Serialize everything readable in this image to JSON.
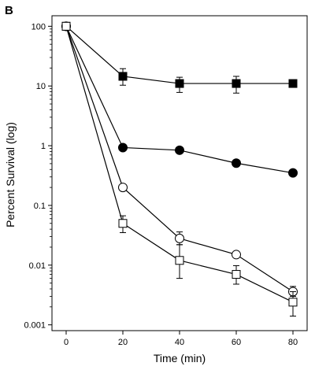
{
  "chart_data": {
    "type": "line",
    "panel_label": "B",
    "title": "",
    "xlabel": "Time (min)",
    "ylabel": "Percent Survival (log)",
    "y_scale": "log",
    "xlim": [
      -5,
      85
    ],
    "ylim": [
      0.0008,
      150
    ],
    "x_ticks": [
      0,
      20,
      40,
      60,
      80
    ],
    "x_tick_labels": [
      "0",
      "20",
      "40",
      "60",
      "80"
    ],
    "y_ticks": [
      100,
      10,
      1,
      0.1,
      0.01,
      0.001
    ],
    "y_tick_labels": [
      "100",
      "10",
      "1",
      "0.1",
      "0.01",
      "0.001"
    ],
    "grid": false,
    "legend": "none",
    "series": [
      {
        "marker": "filled-square",
        "x": [
          0,
          20,
          40,
          60,
          80
        ],
        "y": [
          100,
          14.5,
          11,
          11,
          11
        ],
        "err_low": [
          null,
          10.3,
          7.8,
          7.6,
          null
        ],
        "err_high": [
          null,
          19.5,
          14,
          14.5,
          null
        ]
      },
      {
        "marker": "filled-circle",
        "x": [
          0,
          20,
          40,
          60,
          80
        ],
        "y": [
          100,
          0.93,
          0.84,
          0.51,
          0.35
        ],
        "err_low": [
          null,
          null,
          null,
          null,
          null
        ],
        "err_high": [
          null,
          null,
          null,
          null,
          null
        ]
      },
      {
        "marker": "open-circle",
        "x": [
          0,
          20,
          40,
          60,
          80
        ],
        "y": [
          100,
          0.2,
          0.028,
          0.015,
          0.0036
        ],
        "err_low": [
          null,
          null,
          0.022,
          null,
          0.003
        ],
        "err_high": [
          null,
          null,
          0.036,
          null,
          0.0044
        ]
      },
      {
        "marker": "open-square",
        "x": [
          0,
          20,
          40,
          60,
          80
        ],
        "y": [
          100,
          0.05,
          0.012,
          0.007,
          0.0024
        ],
        "err_low": [
          null,
          0.035,
          0.006,
          0.0048,
          0.0014
        ],
        "err_high": [
          null,
          0.067,
          0.022,
          0.0098,
          0.0036
        ]
      }
    ]
  }
}
